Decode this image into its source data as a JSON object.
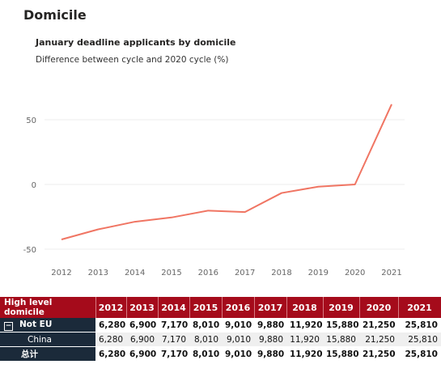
{
  "section": {
    "title": "Domicile"
  },
  "chart_data": {
    "type": "line",
    "title": "January deadline applicants by domicile",
    "subtitle": "Difference between cycle and 2020 cycle (%)",
    "x": [
      2012,
      2013,
      2014,
      2015,
      2016,
      2017,
      2018,
      2019,
      2020,
      2021
    ],
    "series": [
      {
        "values": [
          -42.5,
          -34.7,
          -28.8,
          -25.5,
          -20.2,
          -21.3,
          -6.6,
          -1.7,
          0,
          61.9
        ]
      }
    ],
    "y_ticks": [
      50,
      0,
      -50
    ],
    "ylim": [
      -50,
      55
    ],
    "grid": true,
    "line_color": "#f07563"
  },
  "table": {
    "header": [
      "High level domicile",
      "2012",
      "2013",
      "2014",
      "2015",
      "2016",
      "2017",
      "2018",
      "2019",
      "2020",
      "2021"
    ],
    "rows": [
      {
        "label": "Not EU",
        "expander": "−",
        "values": [
          "6,280",
          "6,900",
          "7,170",
          "8,010",
          "9,010",
          "9,880",
          "11,920",
          "15,880",
          "21,250",
          "25,810"
        ]
      },
      {
        "label": "China",
        "values": [
          "6,280",
          "6,900",
          "7,170",
          "8,010",
          "9,010",
          "9,880",
          "11,920",
          "15,880",
          "21,250",
          "25,810"
        ]
      },
      {
        "label": "总计",
        "values": [
          "6,280",
          "6,900",
          "7,170",
          "8,010",
          "9,010",
          "9,880",
          "11,920",
          "15,880",
          "21,250",
          "25,810"
        ]
      }
    ]
  }
}
